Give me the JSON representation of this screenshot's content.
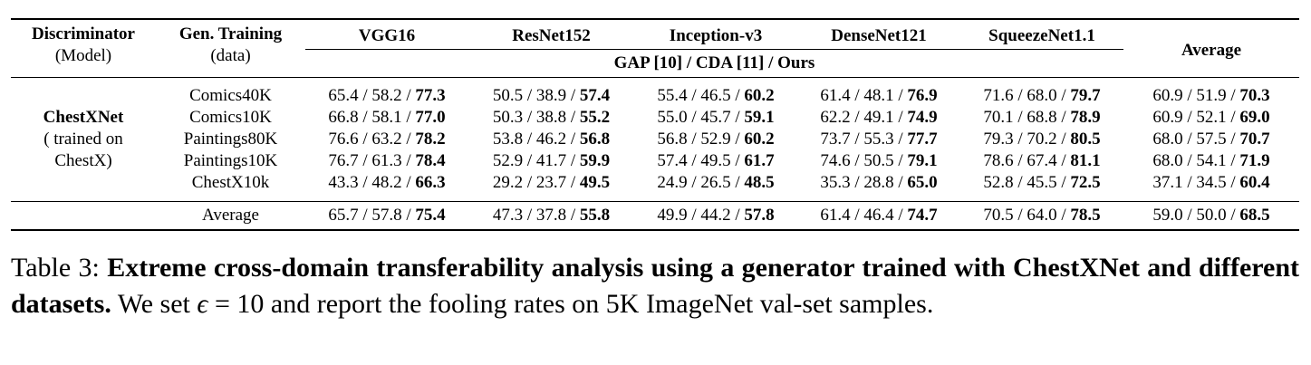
{
  "table": {
    "header": {
      "discriminator": "Discriminator",
      "discriminator_sub": "(Model)",
      "gen_training": "Gen. Training",
      "gen_training_sub": "(data)",
      "models": [
        "VGG16",
        "ResNet152",
        "Inception-v3",
        "DenseNet121",
        "SqueezeNet1.1"
      ],
      "average": "Average",
      "methods": "GAP [10] / CDA [11] / Ours"
    },
    "group": {
      "name": "ChestXNet",
      "line2": "( trained on",
      "line3": "ChestX)"
    },
    "rows": [
      {
        "data": "Comics40K",
        "cells": [
          [
            "65.4 / 58.2 / ",
            "77.3"
          ],
          [
            "50.5 / 38.9 / ",
            "57.4"
          ],
          [
            "55.4 / 46.5 / ",
            "60.2"
          ],
          [
            "61.4 / 48.1 / ",
            "76.9"
          ],
          [
            "71.6 / 68.0 / ",
            "79.7"
          ],
          [
            "60.9 / 51.9 / ",
            "70.3"
          ]
        ]
      },
      {
        "data": "Comics10K",
        "cells": [
          [
            "66.8 / 58.1 / ",
            "77.0"
          ],
          [
            "50.3 / 38.8 / ",
            "55.2"
          ],
          [
            "55.0 / 45.7 / ",
            "59.1"
          ],
          [
            "62.2 / 49.1 / ",
            "74.9"
          ],
          [
            "70.1 / 68.8 / ",
            "78.9"
          ],
          [
            "60.9 / 52.1 / ",
            "69.0"
          ]
        ]
      },
      {
        "data": "Paintings80K",
        "cells": [
          [
            "76.6 / 63.2 / ",
            "78.2"
          ],
          [
            "53.8 / 46.2 / ",
            "56.8"
          ],
          [
            "56.8 / 52.9 / ",
            "60.2"
          ],
          [
            "73.7 / 55.3 / ",
            "77.7"
          ],
          [
            "79.3 / 70.2 / ",
            "80.5"
          ],
          [
            "68.0 / 57.5 / ",
            "70.7"
          ]
        ]
      },
      {
        "data": "Paintings10K",
        "cells": [
          [
            "76.7 / 61.3 / ",
            "78.4"
          ],
          [
            "52.9 / 41.7 / ",
            "59.9"
          ],
          [
            "57.4 / 49.5 / ",
            "61.7"
          ],
          [
            "74.6 / 50.5 / ",
            "79.1"
          ],
          [
            "78.6 / 67.4 / ",
            "81.1"
          ],
          [
            "68.0 / 54.1 / ",
            "71.9"
          ]
        ]
      },
      {
        "data": "ChestX10k",
        "cells": [
          [
            "43.3 / 48.2 / ",
            "66.3"
          ],
          [
            "29.2 / 23.7 / ",
            "49.5"
          ],
          [
            "24.9 / 26.5 / ",
            "48.5"
          ],
          [
            "35.3 / 28.8 / ",
            "65.0"
          ],
          [
            "52.8 / 45.5 / ",
            "72.5"
          ],
          [
            "37.1 / 34.5 / ",
            "60.4"
          ]
        ]
      }
    ],
    "average_row": {
      "label": "Average",
      "cells": [
        [
          "65.7 / 57.8 / ",
          "75.4"
        ],
        [
          "47.3 / 37.8 / ",
          "55.8"
        ],
        [
          "49.9 / 44.2 / ",
          "57.8"
        ],
        [
          "61.4 / 46.4 / ",
          "74.7"
        ],
        [
          "70.5 / 64.0 / ",
          "78.5"
        ],
        [
          "59.0 / 50.0 / ",
          "68.5"
        ]
      ]
    }
  },
  "caption": {
    "label": "Table 3:",
    "bold": "Extreme cross-domain transferability analysis using a generator trained with ChestXNet and different datasets.",
    "text_before_eps": "We set",
    "eps_symbol": "ϵ",
    "eps_value": "= 10",
    "text_after_eps": "and report the fooling rates on 5K ImageNet val-set samples."
  }
}
